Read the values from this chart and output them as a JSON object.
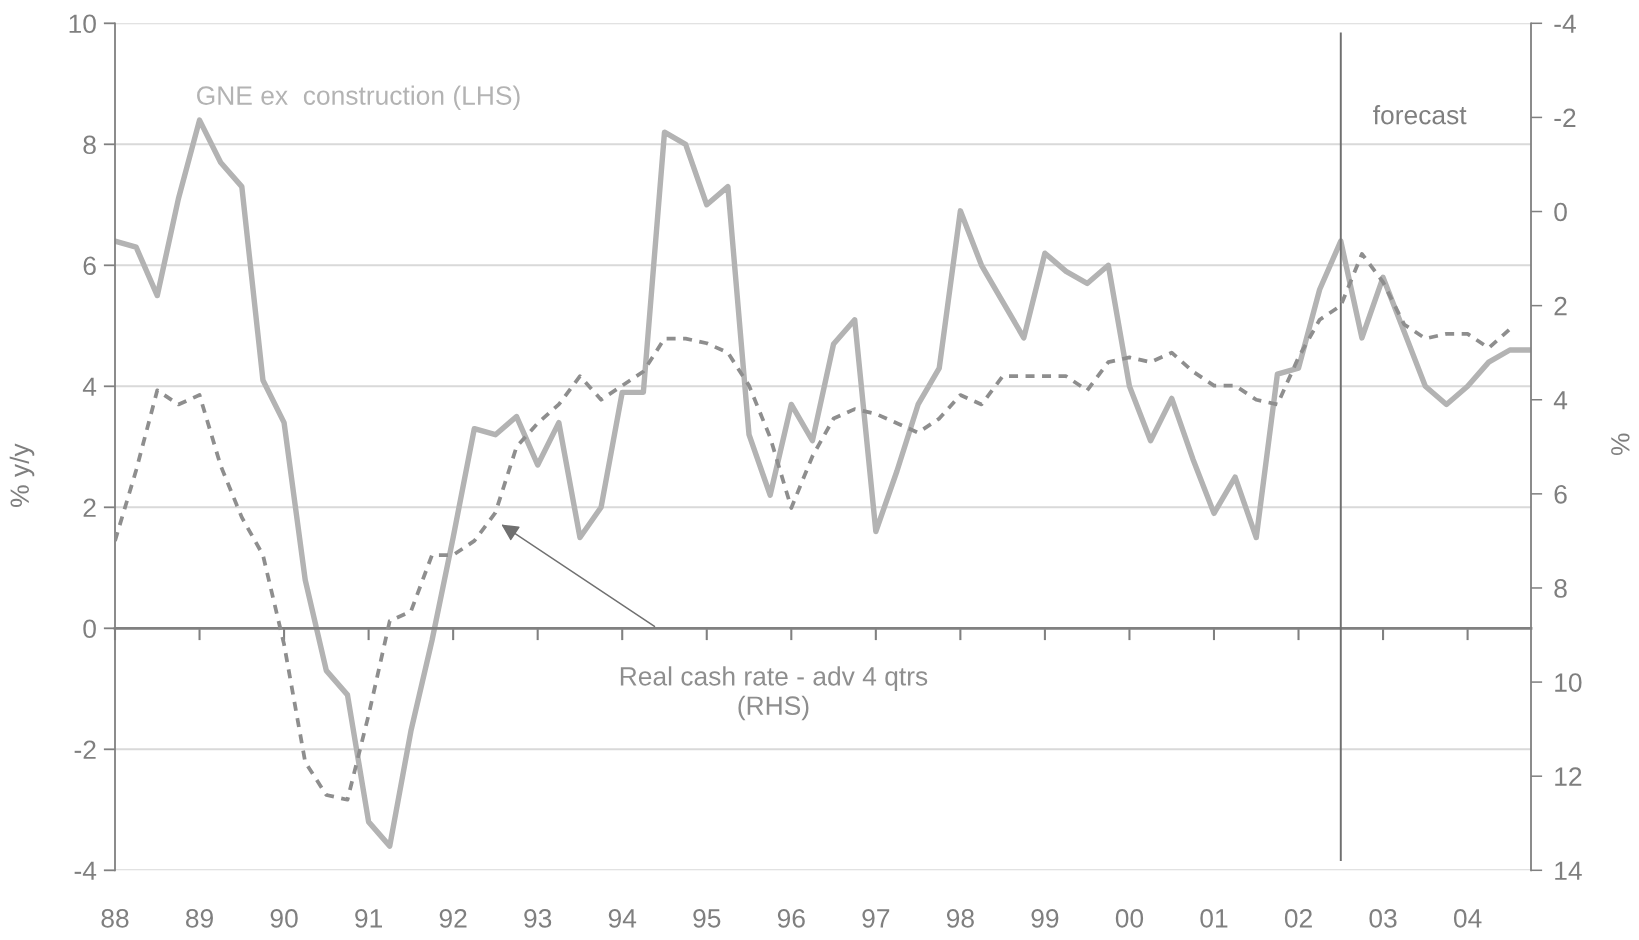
{
  "chart_data": {
    "type": "line",
    "x": [
      1988,
      1988.25,
      1988.5,
      1988.75,
      1989,
      1989.25,
      1989.5,
      1989.75,
      1990,
      1990.25,
      1990.5,
      1990.75,
      1991,
      1991.25,
      1991.5,
      1991.75,
      1992,
      1992.25,
      1992.5,
      1992.75,
      1993,
      1993.25,
      1993.5,
      1993.75,
      1994,
      1994.25,
      1994.5,
      1994.75,
      1995,
      1995.25,
      1995.5,
      1995.75,
      1996,
      1996.25,
      1996.5,
      1996.75,
      1997,
      1997.25,
      1997.5,
      1997.75,
      1998,
      1998.25,
      1998.5,
      1998.75,
      1999,
      1999.25,
      1999.5,
      1999.75,
      2000,
      2000.25,
      2000.5,
      2000.75,
      2001,
      2001.25,
      2001.5,
      2001.75,
      2002,
      2002.25,
      2002.5,
      2002.75,
      2003,
      2003.25,
      2003.5,
      2003.75,
      2004,
      2004.25,
      2004.5,
      2004.75
    ],
    "series": [
      {
        "name": "GNE ex  construction (LHS)",
        "color": "#b3b3b3",
        "line_style": "solid",
        "values": [
          6.4,
          6.3,
          5.5,
          7.1,
          8.4,
          7.7,
          7.3,
          4.1,
          3.4,
          0.8,
          -0.7,
          -1.1,
          -3.2,
          -3.6,
          -1.7,
          -0.2,
          1.5,
          3.3,
          3.2,
          3.5,
          2.7,
          3.4,
          1.5,
          2.0,
          3.9,
          3.9,
          8.2,
          8.0,
          7.0,
          7.3,
          3.2,
          2.2,
          3.7,
          3.1,
          4.7,
          5.1,
          1.6,
          2.6,
          3.7,
          4.3,
          6.9,
          6.0,
          5.4,
          4.8,
          6.2,
          5.9,
          5.7,
          6.0,
          4.0,
          3.1,
          3.8,
          2.8,
          1.9,
          2.5,
          1.5,
          4.2,
          4.3,
          5.6,
          6.4,
          4.8,
          5.8,
          4.9,
          4.0,
          3.7,
          4.0,
          4.4,
          4.6,
          4.6
        ]
      },
      {
        "name": "Real cash rate - adv 4 qtrs\n(RHS)",
        "color": "#8e8e8e",
        "line_style": "dashed",
        "axis": "y2",
        "values": [
          7.0,
          5.5,
          3.8,
          4.1,
          3.9,
          5.4,
          6.5,
          7.3,
          9.2,
          11.7,
          12.4,
          12.5,
          10.7,
          8.7,
          8.5,
          7.3,
          7.3,
          7.0,
          6.4,
          5.0,
          4.5,
          4.1,
          3.5,
          4.0,
          3.7,
          3.4,
          2.7,
          2.7,
          2.8,
          3.0,
          3.7,
          4.8,
          6.3,
          5.2,
          4.4,
          4.2,
          4.3,
          4.5,
          4.7,
          4.4,
          3.9,
          4.1,
          3.5,
          3.5,
          3.5,
          3.5,
          3.8,
          3.2,
          3.1,
          3.2,
          3.0,
          3.4,
          3.7,
          3.7,
          4.0,
          4.1,
          3.1,
          2.3,
          2.0,
          0.9,
          1.5,
          2.4,
          2.7,
          2.6,
          2.6,
          2.9,
          2.5,
          null
        ]
      }
    ],
    "xlim": [
      1988,
      2004.75
    ],
    "xticks": [
      {
        "value": 1988,
        "label": "88"
      },
      {
        "value": 1989,
        "label": "89"
      },
      {
        "value": 1990,
        "label": "90"
      },
      {
        "value": 1991,
        "label": "91"
      },
      {
        "value": 1992,
        "label": "92"
      },
      {
        "value": 1993,
        "label": "93"
      },
      {
        "value": 1994,
        "label": "94"
      },
      {
        "value": 1995,
        "label": "95"
      },
      {
        "value": 1996,
        "label": "96"
      },
      {
        "value": 1997,
        "label": "97"
      },
      {
        "value": 1998,
        "label": "98"
      },
      {
        "value": 1999,
        "label": "99"
      },
      {
        "value": 2000,
        "label": "00"
      },
      {
        "value": 2001,
        "label": "01"
      },
      {
        "value": 2002,
        "label": "02"
      },
      {
        "value": 2003,
        "label": "03"
      },
      {
        "value": 2004,
        "label": "04"
      }
    ],
    "ylim": [
      -4,
      10
    ],
    "yticks": [
      -4,
      -2,
      0,
      2,
      4,
      6,
      8,
      10
    ],
    "y2lim": [
      14,
      -4
    ],
    "y2ticks": [
      -4,
      -2,
      0,
      2,
      4,
      6,
      8,
      10,
      12,
      14
    ],
    "ylabel": "% y/y",
    "y2label": "%",
    "grid": "y",
    "ref_lines": [
      {
        "axis": "x",
        "value": 2002.5,
        "label": "forecast",
        "color": "#6f6f6f"
      }
    ]
  }
}
